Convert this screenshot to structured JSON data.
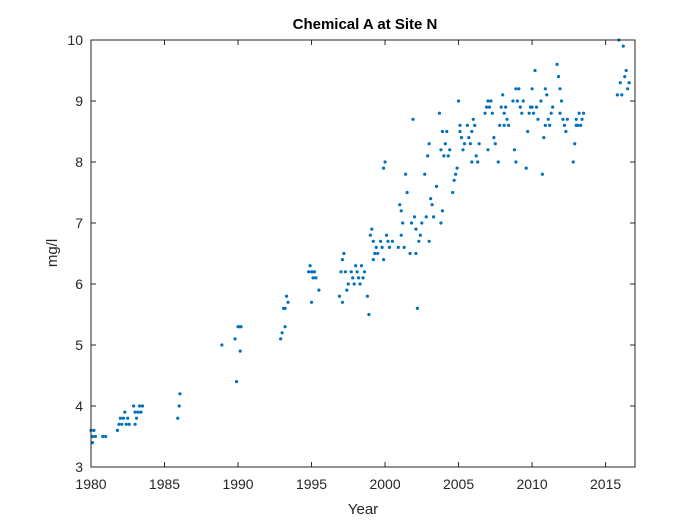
{
  "chart_data": {
    "type": "scatter",
    "title": "Chemical A at Site N",
    "xlabel": "Year",
    "ylabel": "mg/l",
    "xlim": [
      1980,
      2017
    ],
    "ylim": [
      3,
      10
    ],
    "x_ticks": [
      1980,
      1985,
      1990,
      1995,
      2000,
      2005,
      2010,
      2015
    ],
    "y_ticks": [
      3,
      4,
      5,
      6,
      7,
      8,
      9,
      10
    ],
    "grid": false,
    "marker_color": "#0072BD",
    "series": [
      {
        "points": [
          [
            1980.0,
            3.6
          ],
          [
            1980.1,
            3.5
          ],
          [
            1980.2,
            3.6
          ],
          [
            1980.3,
            3.5
          ],
          [
            1980.1,
            3.4
          ],
          [
            1980.8,
            3.5
          ],
          [
            1981.0,
            3.5
          ],
          [
            1981.9,
            3.7
          ],
          [
            1982.0,
            3.8
          ],
          [
            1982.1,
            3.7
          ],
          [
            1982.2,
            3.8
          ],
          [
            1982.3,
            3.9
          ],
          [
            1982.4,
            3.7
          ],
          [
            1982.5,
            3.8
          ],
          [
            1982.6,
            3.7
          ],
          [
            1981.8,
            3.6
          ],
          [
            1982.9,
            4.0
          ],
          [
            1983.0,
            3.9
          ],
          [
            1983.1,
            3.8
          ],
          [
            1983.2,
            3.9
          ],
          [
            1983.3,
            4.0
          ],
          [
            1983.4,
            3.9
          ],
          [
            1983.5,
            4.0
          ],
          [
            1983.0,
            3.7
          ],
          [
            1985.9,
            3.8
          ],
          [
            1986.0,
            4.0
          ],
          [
            1986.05,
            4.2
          ],
          [
            1988.9,
            5.0
          ],
          [
            1989.8,
            5.1
          ],
          [
            1989.9,
            4.4
          ],
          [
            1990.0,
            5.3
          ],
          [
            1990.1,
            5.3
          ],
          [
            1990.2,
            5.3
          ],
          [
            1990.15,
            4.9
          ],
          [
            1992.9,
            5.1
          ],
          [
            1993.0,
            5.2
          ],
          [
            1993.1,
            5.6
          ],
          [
            1993.2,
            5.3
          ],
          [
            1993.3,
            5.8
          ],
          [
            1993.4,
            5.7
          ],
          [
            1993.2,
            5.6
          ],
          [
            1994.8,
            6.2
          ],
          [
            1994.9,
            6.3
          ],
          [
            1995.0,
            6.2
          ],
          [
            1995.1,
            6.1
          ],
          [
            1995.2,
            6.2
          ],
          [
            1995.3,
            6.1
          ],
          [
            1995.0,
            5.7
          ],
          [
            1995.5,
            5.9
          ],
          [
            1995.1,
            6.2
          ],
          [
            1996.9,
            5.8
          ],
          [
            1997.0,
            6.2
          ],
          [
            1997.1,
            6.4
          ],
          [
            1997.2,
            6.5
          ],
          [
            1997.3,
            6.2
          ],
          [
            1997.4,
            5.9
          ],
          [
            1997.5,
            6.0
          ],
          [
            1997.1,
            5.7
          ],
          [
            1997.7,
            6.2
          ],
          [
            1997.8,
            6.1
          ],
          [
            1997.9,
            6.0
          ],
          [
            1998.0,
            6.3
          ],
          [
            1998.1,
            6.2
          ],
          [
            1998.2,
            6.1
          ],
          [
            1998.3,
            6.0
          ],
          [
            1998.4,
            6.3
          ],
          [
            1998.5,
            6.1
          ],
          [
            1998.6,
            6.2
          ],
          [
            1998.8,
            5.8
          ],
          [
            1998.9,
            5.5
          ],
          [
            1999.0,
            6.8
          ],
          [
            1999.1,
            6.9
          ],
          [
            1999.2,
            6.7
          ],
          [
            1999.3,
            6.5
          ],
          [
            1999.4,
            6.6
          ],
          [
            1999.5,
            6.5
          ],
          [
            1999.2,
            6.4
          ],
          [
            1999.7,
            6.7
          ],
          [
            1999.8,
            6.6
          ],
          [
            1999.9,
            7.9
          ],
          [
            2000.0,
            8.0
          ],
          [
            2000.1,
            6.8
          ],
          [
            2000.2,
            6.7
          ],
          [
            2000.3,
            6.6
          ],
          [
            1999.9,
            6.4
          ],
          [
            2000.5,
            6.7
          ],
          [
            2000.9,
            6.6
          ],
          [
            2001.0,
            7.3
          ],
          [
            2001.1,
            7.2
          ],
          [
            2001.2,
            7.0
          ],
          [
            2001.3,
            6.6
          ],
          [
            2001.4,
            7.8
          ],
          [
            2001.5,
            7.5
          ],
          [
            2001.1,
            6.8
          ],
          [
            2001.7,
            6.5
          ],
          [
            2001.8,
            7.0
          ],
          [
            2001.9,
            8.7
          ],
          [
            2002.0,
            7.1
          ],
          [
            2002.1,
            6.9
          ],
          [
            2002.2,
            5.6
          ],
          [
            2002.3,
            6.7
          ],
          [
            2002.4,
            6.8
          ],
          [
            2002.1,
            6.5
          ],
          [
            2002.5,
            7.0
          ],
          [
            2002.7,
            7.8
          ],
          [
            2002.8,
            7.1
          ],
          [
            2002.9,
            8.1
          ],
          [
            2003.0,
            8.3
          ],
          [
            2003.1,
            7.4
          ],
          [
            2003.2,
            7.3
          ],
          [
            2003.3,
            7.1
          ],
          [
            2003.0,
            6.7
          ],
          [
            2003.5,
            7.6
          ],
          [
            2003.7,
            8.8
          ],
          [
            2003.8,
            8.2
          ],
          [
            2003.9,
            8.5
          ],
          [
            2004.0,
            8.1
          ],
          [
            2004.1,
            8.3
          ],
          [
            2004.2,
            8.5
          ],
          [
            2004.3,
            8.1
          ],
          [
            2004.4,
            8.2
          ],
          [
            2003.9,
            7.2
          ],
          [
            2003.8,
            7.0
          ],
          [
            2004.6,
            7.5
          ],
          [
            2004.7,
            7.7
          ],
          [
            2004.8,
            7.8
          ],
          [
            2004.9,
            7.9
          ],
          [
            2005.0,
            9.0
          ],
          [
            2005.1,
            8.6
          ],
          [
            2005.2,
            8.4
          ],
          [
            2005.3,
            8.2
          ],
          [
            2005.4,
            8.3
          ],
          [
            2005.1,
            8.5
          ],
          [
            2005.6,
            8.6
          ],
          [
            2005.7,
            8.4
          ],
          [
            2005.8,
            8.3
          ],
          [
            2005.9,
            8.5
          ],
          [
            2006.0,
            8.7
          ],
          [
            2006.1,
            8.6
          ],
          [
            2006.2,
            8.1
          ],
          [
            2006.3,
            8.0
          ],
          [
            2006.4,
            8.3
          ],
          [
            2005.9,
            8.0
          ],
          [
            2006.8,
            8.8
          ],
          [
            2006.9,
            8.9
          ],
          [
            2007.0,
            9.0
          ],
          [
            2007.1,
            8.9
          ],
          [
            2007.2,
            9.0
          ],
          [
            2007.3,
            8.8
          ],
          [
            2007.4,
            8.4
          ],
          [
            2007.5,
            8.3
          ],
          [
            2007.0,
            8.2
          ],
          [
            2007.7,
            8.0
          ],
          [
            2007.8,
            8.6
          ],
          [
            2007.9,
            8.9
          ],
          [
            2008.0,
            9.1
          ],
          [
            2008.1,
            8.8
          ],
          [
            2008.2,
            8.9
          ],
          [
            2008.3,
            8.7
          ],
          [
            2008.4,
            8.6
          ],
          [
            2008.1,
            8.6
          ],
          [
            2008.7,
            9.0
          ],
          [
            2008.8,
            8.2
          ],
          [
            2008.9,
            9.2
          ],
          [
            2009.0,
            9.0
          ],
          [
            2009.1,
            9.2
          ],
          [
            2009.2,
            8.9
          ],
          [
            2009.3,
            8.8
          ],
          [
            2009.4,
            9.0
          ],
          [
            2008.9,
            8.0
          ],
          [
            2009.6,
            7.9
          ],
          [
            2009.7,
            8.5
          ],
          [
            2009.8,
            8.8
          ],
          [
            2009.9,
            8.9
          ],
          [
            2010.0,
            9.2
          ],
          [
            2010.1,
            8.8
          ],
          [
            2010.2,
            9.5
          ],
          [
            2010.3,
            8.9
          ],
          [
            2010.4,
            8.7
          ],
          [
            2010.0,
            8.9
          ],
          [
            2010.6,
            9.0
          ],
          [
            2010.7,
            7.8
          ],
          [
            2010.8,
            8.4
          ],
          [
            2010.9,
            9.2
          ],
          [
            2011.0,
            9.1
          ],
          [
            2011.1,
            8.7
          ],
          [
            2011.2,
            8.6
          ],
          [
            2011.3,
            8.8
          ],
          [
            2011.4,
            8.9
          ],
          [
            2010.9,
            8.6
          ],
          [
            2011.7,
            9.6
          ],
          [
            2011.8,
            9.4
          ],
          [
            2011.9,
            9.2
          ],
          [
            2012.0,
            9.0
          ],
          [
            2012.1,
            8.7
          ],
          [
            2012.2,
            8.6
          ],
          [
            2012.3,
            8.5
          ],
          [
            2012.4,
            8.7
          ],
          [
            2011.9,
            8.8
          ],
          [
            2012.8,
            8.0
          ],
          [
            2012.9,
            8.3
          ],
          [
            2013.0,
            8.7
          ],
          [
            2013.1,
            8.6
          ],
          [
            2013.2,
            8.8
          ],
          [
            2013.3,
            8.6
          ],
          [
            2013.4,
            8.7
          ],
          [
            2013.5,
            8.8
          ],
          [
            2013.0,
            8.6
          ],
          [
            2015.8,
            9.1
          ],
          [
            2015.9,
            10.0
          ],
          [
            2016.0,
            9.3
          ],
          [
            2016.1,
            9.1
          ],
          [
            2016.2,
            9.9
          ],
          [
            2016.3,
            9.4
          ],
          [
            2016.4,
            9.5
          ],
          [
            2016.5,
            9.2
          ],
          [
            2016.6,
            9.3
          ]
        ]
      }
    ]
  }
}
